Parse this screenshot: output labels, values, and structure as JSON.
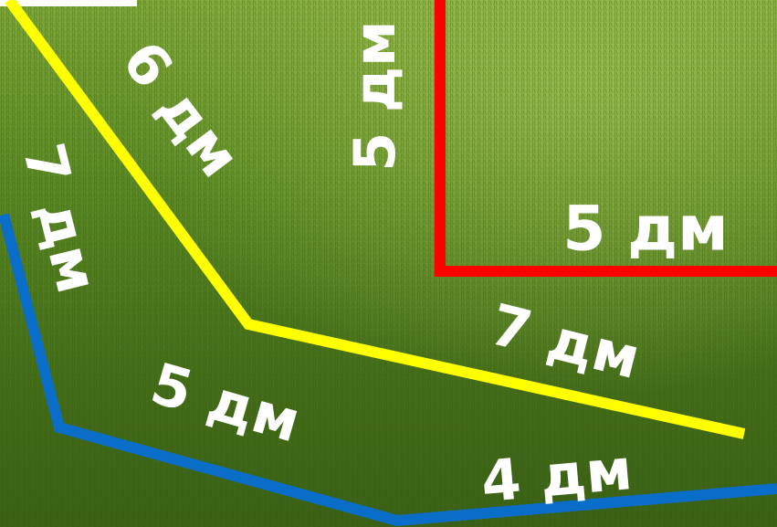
{
  "lines": [
    {
      "color": "#ffff00",
      "labels": [
        "6 дм",
        "7 дм"
      ]
    },
    {
      "color": "#ff0000",
      "labels": [
        "5 дм",
        "5 дм"
      ]
    },
    {
      "color": "#0a6ec8",
      "labels": [
        "7 дм",
        "5 дм",
        "4 дм"
      ]
    }
  ]
}
